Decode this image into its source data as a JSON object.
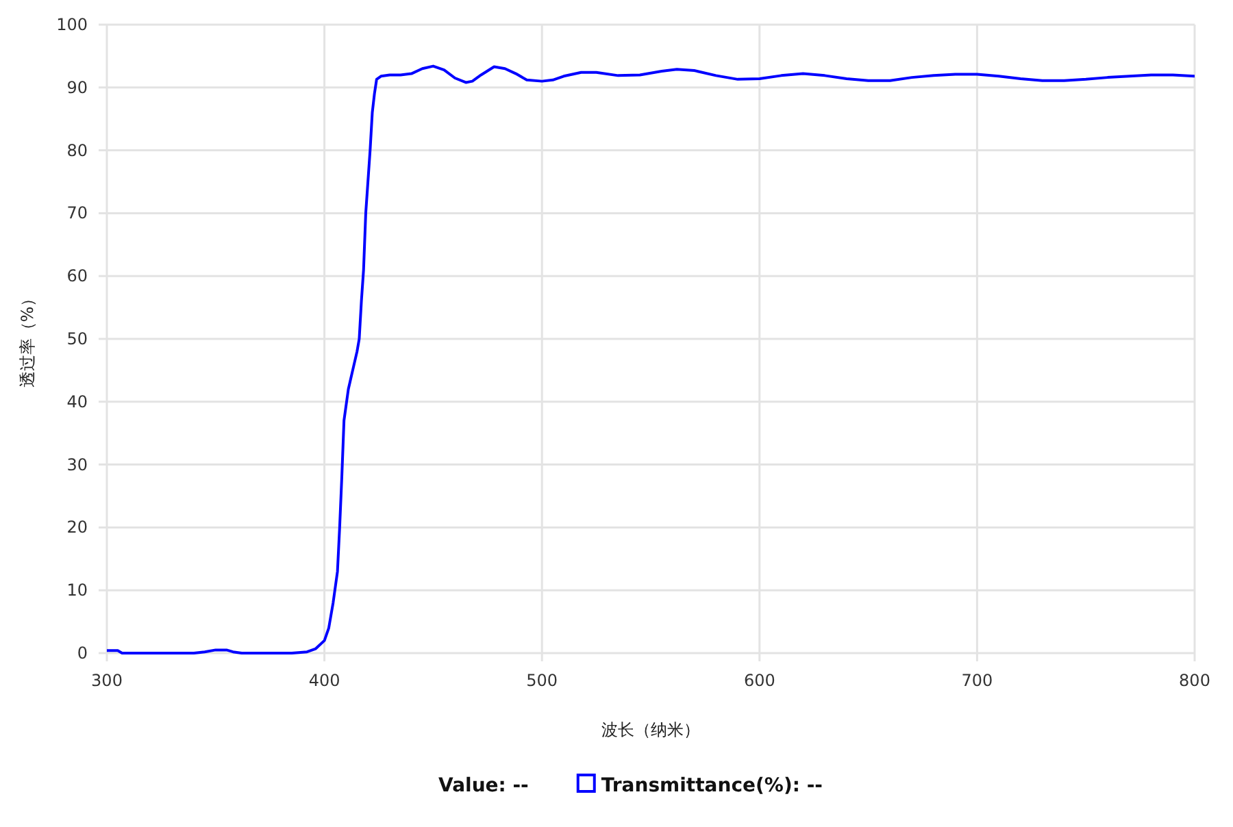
{
  "chart_data": {
    "type": "line",
    "xlabel": "波长（纳米）",
    "ylabel": "透过率（%）",
    "xlim": [
      300,
      800
    ],
    "xticks": [
      300,
      400,
      500,
      600,
      700,
      800
    ],
    "ylim": [
      0,
      100
    ],
    "yticks": [
      0,
      10,
      20,
      30,
      40,
      50,
      60,
      70,
      80,
      90,
      100
    ],
    "grid": true,
    "legend": "bottom",
    "marker": "none",
    "line_style": "solid",
    "annotations": [
      "Value:  --",
      ":  --"
    ],
    "series": [
      {
        "name": "Transmittance(%)",
        "color": "#0000ff",
        "x": [
          300,
          305,
          307,
          340,
          345,
          350,
          355,
          358,
          362,
          385,
          392,
          396,
          400,
          402,
          404,
          406,
          407,
          408,
          409,
          411,
          413,
          415,
          416,
          417,
          418,
          419,
          420,
          421,
          422,
          423,
          424,
          426,
          430,
          435,
          440,
          445,
          450,
          455,
          460,
          465,
          468,
          472,
          478,
          483,
          488,
          493,
          500,
          505,
          510,
          518,
          525,
          535,
          545,
          555,
          562,
          570,
          580,
          590,
          600,
          610,
          620,
          630,
          640,
          650,
          660,
          670,
          680,
          690,
          700,
          710,
          720,
          730,
          740,
          750,
          760,
          770,
          780,
          790,
          800
        ],
        "values": [
          0.4,
          0.4,
          0,
          0,
          0.2,
          0.5,
          0.5,
          0.2,
          0,
          0,
          0.2,
          0.7,
          2,
          4,
          8,
          13,
          20,
          28,
          37,
          42,
          45,
          48,
          50,
          56,
          61,
          70,
          75,
          80,
          86,
          89,
          91.3,
          91.8,
          92,
          92,
          92.2,
          93,
          93.4,
          92.8,
          91.5,
          90.8,
          91,
          92,
          93.3,
          93,
          92.2,
          91.2,
          91,
          91.2,
          91.8,
          92.4,
          92.4,
          91.9,
          92,
          92.6,
          92.9,
          92.7,
          91.9,
          91.3,
          91.4,
          91.9,
          92.2,
          91.9,
          91.4,
          91.1,
          91.1,
          91.6,
          91.9,
          92.1,
          92.1,
          91.8,
          91.4,
          91.1,
          91.1,
          91.3,
          91.6,
          91.8,
          92,
          92,
          91.8
        ]
      }
    ]
  }
}
